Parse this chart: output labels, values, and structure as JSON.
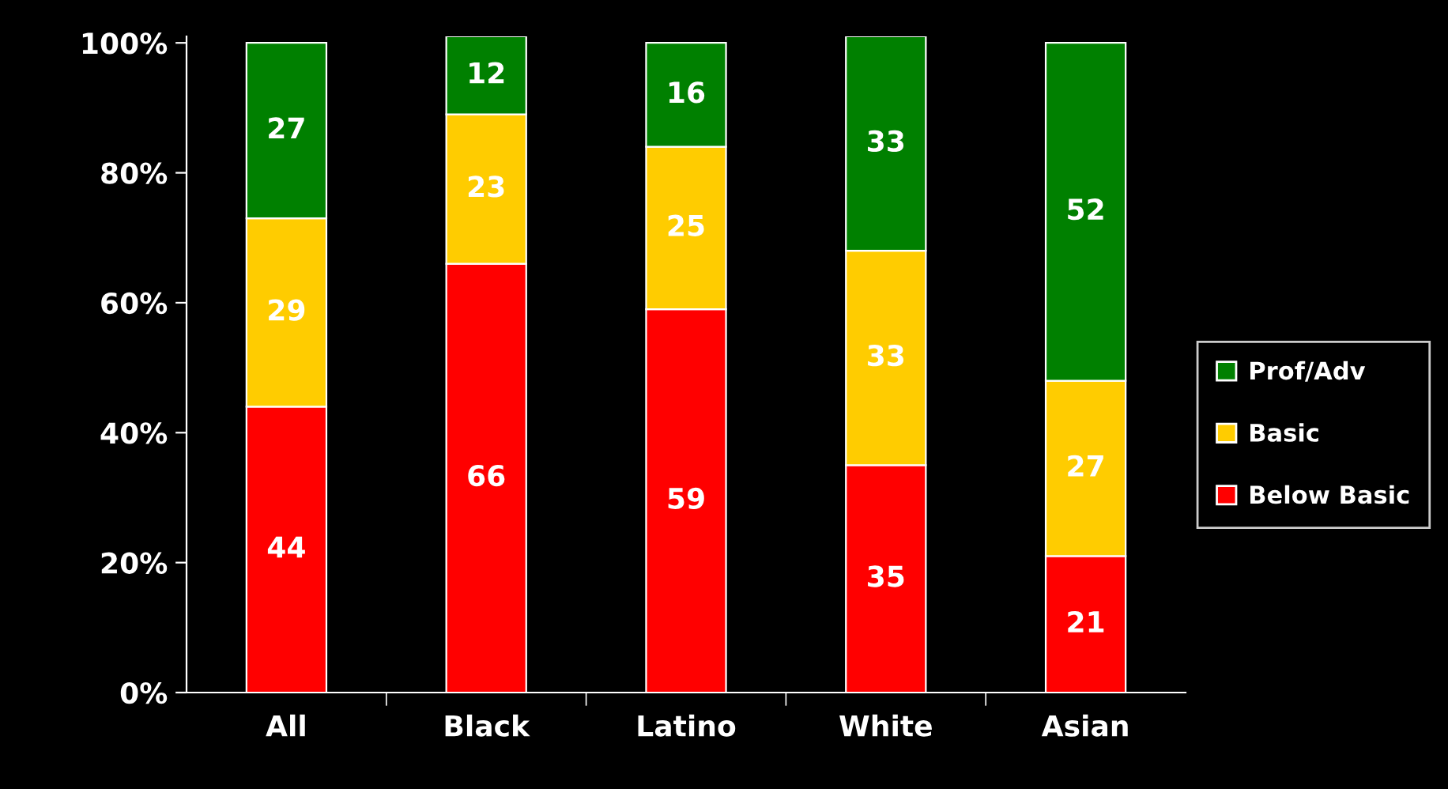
{
  "chart_data": {
    "type": "bar",
    "stacked": true,
    "categories": [
      "All",
      "Black",
      "Latino",
      "White",
      "Asian"
    ],
    "series": [
      {
        "name": "Below Basic",
        "color": "#ff0000",
        "values": [
          44,
          66,
          59,
          35,
          21
        ]
      },
      {
        "name": "Basic",
        "color": "#ffcc00",
        "values": [
          29,
          23,
          25,
          33,
          27
        ]
      },
      {
        "name": "Prof/Adv",
        "color": "#008000",
        "values": [
          27,
          12,
          16,
          33,
          52
        ]
      }
    ],
    "ylim": [
      0,
      101
    ],
    "yticks": [
      {
        "value": 0,
        "label": "0%"
      },
      {
        "value": 20,
        "label": "20%"
      },
      {
        "value": 40,
        "label": "40%"
      },
      {
        "value": 60,
        "label": "60%"
      },
      {
        "value": 80,
        "label": "80%"
      },
      {
        "value": 100,
        "label": "100%"
      }
    ],
    "data_labels": true,
    "legend": "right",
    "grid": false
  }
}
